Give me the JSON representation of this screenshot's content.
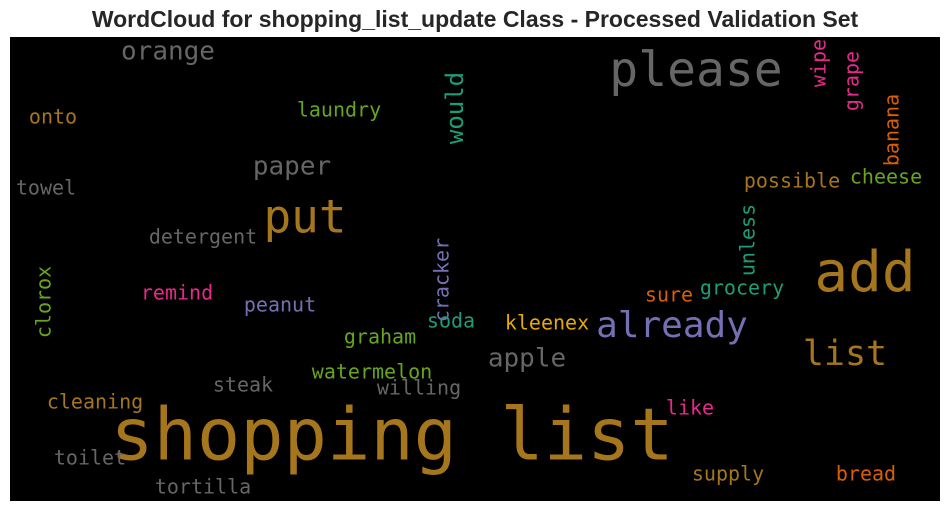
{
  "chart_data": {
    "type": "wordcloud",
    "title": "WordCloud for shopping_list_update Class - Processed Validation Set",
    "background": "#000000",
    "words": [
      {
        "text": "shopping list",
        "weight": 1.0,
        "color": "#a6761d"
      },
      {
        "text": "please",
        "weight": 0.58,
        "color": "#666666"
      },
      {
        "text": "put",
        "weight": 0.56,
        "color": "#a6761d"
      },
      {
        "text": "add",
        "weight": 0.66,
        "color": "#a6761d"
      },
      {
        "text": "already",
        "weight": 0.46,
        "color": "#7570b3"
      },
      {
        "text": "list",
        "weight": 0.44,
        "color": "#a6761d"
      },
      {
        "text": "orange",
        "weight": 0.34,
        "color": "#666666"
      },
      {
        "text": "paper",
        "weight": 0.32,
        "color": "#666666"
      },
      {
        "text": "apple",
        "weight": 0.32,
        "color": "#666666"
      },
      {
        "text": "would",
        "weight": 0.3,
        "color": "#1b9e77"
      },
      {
        "text": "laundry",
        "weight": 0.25,
        "color": "#66a61e"
      },
      {
        "text": "onto",
        "weight": 0.25,
        "color": "#a6761d"
      },
      {
        "text": "towel",
        "weight": 0.25,
        "color": "#666666"
      },
      {
        "text": "detergent",
        "weight": 0.25,
        "color": "#666666"
      },
      {
        "text": "clorox",
        "weight": 0.25,
        "color": "#66a61e"
      },
      {
        "text": "remind",
        "weight": 0.25,
        "color": "#e7298a"
      },
      {
        "text": "peanut",
        "weight": 0.25,
        "color": "#7570b3"
      },
      {
        "text": "cracker",
        "weight": 0.25,
        "color": "#7570b3"
      },
      {
        "text": "graham",
        "weight": 0.25,
        "color": "#66a61e"
      },
      {
        "text": "soda",
        "weight": 0.25,
        "color": "#1b9e77"
      },
      {
        "text": "kleenex",
        "weight": 0.25,
        "color": "#e6ab02"
      },
      {
        "text": "sure",
        "weight": 0.25,
        "color": "#d95f02"
      },
      {
        "text": "grocery",
        "weight": 0.25,
        "color": "#1b9e77"
      },
      {
        "text": "unless",
        "weight": 0.25,
        "color": "#1b9e77"
      },
      {
        "text": "possible",
        "weight": 0.25,
        "color": "#a6761d"
      },
      {
        "text": "cheese",
        "weight": 0.25,
        "color": "#66a61e"
      },
      {
        "text": "banana",
        "weight": 0.25,
        "color": "#d95f02"
      },
      {
        "text": "grape",
        "weight": 0.25,
        "color": "#e7298a"
      },
      {
        "text": "wipe",
        "weight": 0.25,
        "color": "#e7298a"
      },
      {
        "text": "watermelon",
        "weight": 0.25,
        "color": "#66a61e"
      },
      {
        "text": "willing",
        "weight": 0.25,
        "color": "#666666"
      },
      {
        "text": "steak",
        "weight": 0.25,
        "color": "#666666"
      },
      {
        "text": "cleaning",
        "weight": 0.25,
        "color": "#a6761d"
      },
      {
        "text": "toilet",
        "weight": 0.25,
        "color": "#666666"
      },
      {
        "text": "tortilla",
        "weight": 0.25,
        "color": "#666666"
      },
      {
        "text": "supply",
        "weight": 0.25,
        "color": "#a6761d"
      },
      {
        "text": "bread",
        "weight": 0.25,
        "color": "#d95f02"
      },
      {
        "text": "like",
        "weight": 0.25,
        "color": "#e7298a"
      }
    ]
  }
}
